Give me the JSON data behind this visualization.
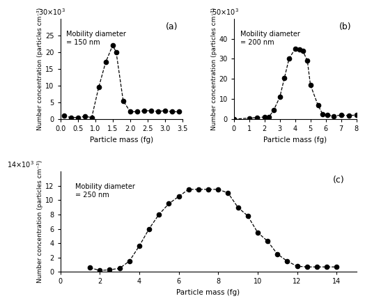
{
  "panel_a": {
    "label": "(a)",
    "annotation": "Mobility diameter\n= 150 nm",
    "x": [
      0.1,
      0.3,
      0.5,
      0.7,
      0.9,
      1.1,
      1.3,
      1.5,
      1.6,
      1.8,
      2.0,
      2.2,
      2.4,
      2.6,
      2.8,
      3.0,
      3.2,
      3.4
    ],
    "y": [
      1.0,
      0.5,
      0.5,
      0.8,
      0.5,
      9.5,
      17.0,
      22.0,
      20.0,
      5.5,
      2.2,
      2.2,
      2.5,
      2.5,
      2.3,
      2.5,
      2.2,
      2.2
    ],
    "xlim": [
      0.0,
      3.5
    ],
    "xticks": [
      0.0,
      0.5,
      1.0,
      1.5,
      2.0,
      2.5,
      3.0,
      3.5
    ],
    "xticklabels": [
      "0.0",
      "0.5",
      "1.0",
      "1.5",
      "2.0",
      "2.5",
      "3.0",
      "3.5"
    ],
    "ylim": [
      0,
      30
    ],
    "yticks": [
      0,
      5,
      10,
      15,
      20,
      25
    ],
    "yticklabels": [
      "0",
      "5",
      "10",
      "15",
      "20",
      "25"
    ],
    "scale_text": "30×10",
    "scale_exp": "3"
  },
  "panel_b": {
    "label": "(b)",
    "annotation": "Mobility diameter\n= 200 nm",
    "x": [
      0,
      1.0,
      1.5,
      2.0,
      2.3,
      2.6,
      3.0,
      3.3,
      3.6,
      4.0,
      4.3,
      4.5,
      4.8,
      5.0,
      5.5,
      5.8,
      6.1,
      6.5,
      7.0,
      7.5,
      8.0
    ],
    "y": [
      0,
      0.5,
      0.8,
      1.0,
      1.2,
      4.5,
      11.0,
      20.5,
      30.0,
      35.0,
      34.5,
      34.0,
      29.0,
      17.0,
      6.8,
      2.5,
      2.0,
      1.5,
      2.0,
      1.8,
      2.0
    ],
    "xlim": [
      0,
      8
    ],
    "xticks": [
      0,
      1,
      2,
      3,
      4,
      5,
      6,
      7,
      8
    ],
    "xticklabels": [
      "0",
      "1",
      "2",
      "3",
      "4",
      "5",
      "6",
      "7",
      "8"
    ],
    "ylim": [
      0,
      50
    ],
    "yticks": [
      0,
      10,
      20,
      30,
      40
    ],
    "yticklabels": [
      "0",
      "10",
      "20",
      "30",
      "40"
    ],
    "scale_text": "50×10",
    "scale_exp": "3"
  },
  "panel_c": {
    "label": "(c)",
    "annotation": "Mobility diameter\n= 250 nm",
    "x": [
      1.5,
      2.0,
      2.5,
      3.0,
      3.5,
      4.0,
      4.5,
      5.0,
      5.5,
      6.0,
      6.5,
      7.0,
      7.5,
      8.0,
      8.5,
      9.0,
      9.5,
      10.0,
      10.5,
      11.0,
      11.5,
      12.0,
      12.5,
      13.0,
      13.5,
      14.0
    ],
    "y": [
      0.6,
      0.2,
      0.3,
      0.5,
      1.5,
      3.6,
      6.0,
      8.0,
      9.5,
      10.5,
      11.5,
      11.5,
      11.5,
      11.5,
      11.0,
      9.0,
      7.8,
      5.5,
      4.3,
      2.5,
      1.5,
      0.8,
      0.7,
      0.7,
      0.7,
      0.7
    ],
    "xlim": [
      0,
      15
    ],
    "xticks": [
      0,
      2,
      4,
      6,
      8,
      10,
      12,
      14
    ],
    "xticklabels": [
      "0",
      "2",
      "4",
      "6",
      "8",
      "10",
      "12",
      "14"
    ],
    "ylim": [
      0,
      14
    ],
    "yticks": [
      0,
      2,
      4,
      6,
      8,
      10,
      12
    ],
    "yticklabels": [
      "0",
      "2",
      "4",
      "6",
      "8",
      "10",
      "12"
    ],
    "scale_text": "14×10",
    "scale_exp": "3"
  },
  "xlabel": "Particle mass (fg)",
  "ylabel": "Number concentration (particles cm⁻³)",
  "line_color": "black",
  "marker": "o",
  "markersize": 4.5,
  "linestyle": "--",
  "linewidth": 0.9
}
